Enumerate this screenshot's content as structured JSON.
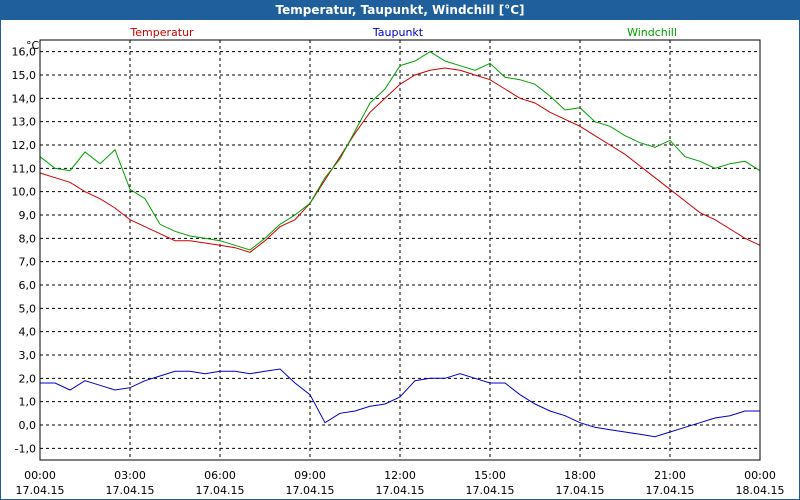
{
  "window": {
    "title": "Temperatur, Taupunkt, Windchill [°C]"
  },
  "colors": {
    "temperatur": "#d00000",
    "taupunkt": "#0000c8",
    "windchill": "#00a000",
    "grid": "#000000",
    "frame": "#1f5f9c"
  },
  "chart_data": {
    "type": "line",
    "title": "Temperatur, Taupunkt, Windchill [°C]",
    "y_unit": "°C",
    "ylim": [
      -1.5,
      16.5
    ],
    "y_ticks": [
      "-1,0",
      "0,0",
      "1,0",
      "2,0",
      "3,0",
      "4,0",
      "5,0",
      "6,0",
      "7,0",
      "8,0",
      "9,0",
      "10,0",
      "11,0",
      "12,0",
      "13,0",
      "14,0",
      "15,0",
      "16,0"
    ],
    "x_range_hours": [
      0,
      24
    ],
    "x_ticks": [
      {
        "time": "00:00",
        "date": "17.04.15"
      },
      {
        "time": "03:00",
        "date": "17.04.15"
      },
      {
        "time": "06:00",
        "date": "17.04.15"
      },
      {
        "time": "09:00",
        "date": "17.04.15"
      },
      {
        "time": "12:00",
        "date": "17.04.15"
      },
      {
        "time": "15:00",
        "date": "17.04.15"
      },
      {
        "time": "18:00",
        "date": "17.04.15"
      },
      {
        "time": "21:00",
        "date": "17.04.15"
      },
      {
        "time": "00:00",
        "date": "18.04.15"
      }
    ],
    "grid": true,
    "legend_placement": "top",
    "series": [
      {
        "name": "Temperatur",
        "color": "#d00000",
        "points": [
          [
            0,
            10.8
          ],
          [
            0.5,
            10.6
          ],
          [
            1,
            10.4
          ],
          [
            1.5,
            10.0
          ],
          [
            2,
            9.7
          ],
          [
            2.5,
            9.3
          ],
          [
            3,
            8.8
          ],
          [
            3.5,
            8.5
          ],
          [
            4,
            8.2
          ],
          [
            4.5,
            7.9
          ],
          [
            5,
            7.9
          ],
          [
            5.5,
            7.8
          ],
          [
            6,
            7.7
          ],
          [
            6.5,
            7.6
          ],
          [
            7,
            7.4
          ],
          [
            7.5,
            7.9
          ],
          [
            8,
            8.5
          ],
          [
            8.5,
            8.8
          ],
          [
            9,
            9.5
          ],
          [
            9.5,
            10.5
          ],
          [
            10,
            11.5
          ],
          [
            10.5,
            12.5
          ],
          [
            11,
            13.4
          ],
          [
            11.5,
            14.0
          ],
          [
            12,
            14.6
          ],
          [
            12.5,
            15.0
          ],
          [
            13,
            15.2
          ],
          [
            13.5,
            15.3
          ],
          [
            14,
            15.2
          ],
          [
            14.5,
            15.0
          ],
          [
            15,
            14.8
          ],
          [
            15.5,
            14.4
          ],
          [
            16,
            14.0
          ],
          [
            16.5,
            13.8
          ],
          [
            17,
            13.4
          ],
          [
            17.5,
            13.1
          ],
          [
            18,
            12.8
          ],
          [
            18.5,
            12.4
          ],
          [
            19,
            12.0
          ],
          [
            19.5,
            11.6
          ],
          [
            20,
            11.1
          ],
          [
            20.5,
            10.6
          ],
          [
            21,
            10.1
          ],
          [
            21.5,
            9.6
          ],
          [
            22,
            9.1
          ],
          [
            22.5,
            8.8
          ],
          [
            23,
            8.4
          ],
          [
            23.5,
            8.0
          ],
          [
            24,
            7.7
          ]
        ]
      },
      {
        "name": "Taupunkt",
        "color": "#0000c8",
        "points": [
          [
            0,
            1.8
          ],
          [
            0.5,
            1.8
          ],
          [
            1,
            1.5
          ],
          [
            1.5,
            1.9
          ],
          [
            2,
            1.7
          ],
          [
            2.5,
            1.5
          ],
          [
            3,
            1.6
          ],
          [
            3.5,
            1.9
          ],
          [
            4,
            2.1
          ],
          [
            4.5,
            2.3
          ],
          [
            5,
            2.3
          ],
          [
            5.5,
            2.2
          ],
          [
            6,
            2.3
          ],
          [
            6.5,
            2.3
          ],
          [
            7,
            2.2
          ],
          [
            7.5,
            2.3
          ],
          [
            8,
            2.4
          ],
          [
            8.5,
            1.8
          ],
          [
            9,
            1.3
          ],
          [
            9.5,
            0.1
          ],
          [
            10,
            0.5
          ],
          [
            10.5,
            0.6
          ],
          [
            11,
            0.8
          ],
          [
            11.5,
            0.9
          ],
          [
            12,
            1.2
          ],
          [
            12.5,
            1.9
          ],
          [
            13,
            2.0
          ],
          [
            13.5,
            2.0
          ],
          [
            14,
            2.2
          ],
          [
            14.5,
            2.0
          ],
          [
            15,
            1.8
          ],
          [
            15.5,
            1.8
          ],
          [
            16,
            1.3
          ],
          [
            16.5,
            0.9
          ],
          [
            17,
            0.6
          ],
          [
            17.5,
            0.4
          ],
          [
            18,
            0.1
          ],
          [
            18.5,
            -0.1
          ],
          [
            19,
            -0.2
          ],
          [
            19.5,
            -0.3
          ],
          [
            20,
            -0.4
          ],
          [
            20.5,
            -0.5
          ],
          [
            21,
            -0.3
          ],
          [
            21.5,
            -0.1
          ],
          [
            22,
            0.1
          ],
          [
            22.5,
            0.3
          ],
          [
            23,
            0.4
          ],
          [
            23.5,
            0.6
          ],
          [
            24,
            0.6
          ]
        ]
      },
      {
        "name": "Windchill",
        "color": "#00a000",
        "points": [
          [
            0,
            11.5
          ],
          [
            0.5,
            11.0
          ],
          [
            1,
            10.9
          ],
          [
            1.5,
            11.7
          ],
          [
            2,
            11.2
          ],
          [
            2.5,
            11.8
          ],
          [
            3,
            10.1
          ],
          [
            3.5,
            9.7
          ],
          [
            4,
            8.6
          ],
          [
            4.5,
            8.3
          ],
          [
            5,
            8.1
          ],
          [
            5.5,
            8.0
          ],
          [
            6,
            7.9
          ],
          [
            6.5,
            7.7
          ],
          [
            7,
            7.5
          ],
          [
            7.5,
            8.0
          ],
          [
            8,
            8.6
          ],
          [
            8.5,
            9.0
          ],
          [
            9,
            9.5
          ],
          [
            9.5,
            10.6
          ],
          [
            10,
            11.4
          ],
          [
            10.5,
            12.6
          ],
          [
            11,
            13.8
          ],
          [
            11.5,
            14.4
          ],
          [
            12,
            15.4
          ],
          [
            12.5,
            15.6
          ],
          [
            13,
            16.0
          ],
          [
            13.5,
            15.6
          ],
          [
            14,
            15.4
          ],
          [
            14.5,
            15.2
          ],
          [
            15,
            15.5
          ],
          [
            15.5,
            14.9
          ],
          [
            16,
            14.8
          ],
          [
            16.5,
            14.6
          ],
          [
            17,
            14.1
          ],
          [
            17.5,
            13.5
          ],
          [
            18,
            13.6
          ],
          [
            18.5,
            13.0
          ],
          [
            19,
            12.8
          ],
          [
            19.5,
            12.4
          ],
          [
            20,
            12.1
          ],
          [
            20.5,
            11.9
          ],
          [
            21,
            12.2
          ],
          [
            21.5,
            11.5
          ],
          [
            22,
            11.3
          ],
          [
            22.5,
            11.0
          ],
          [
            23,
            11.2
          ],
          [
            23.5,
            11.3
          ],
          [
            24,
            10.9
          ]
        ]
      }
    ]
  }
}
